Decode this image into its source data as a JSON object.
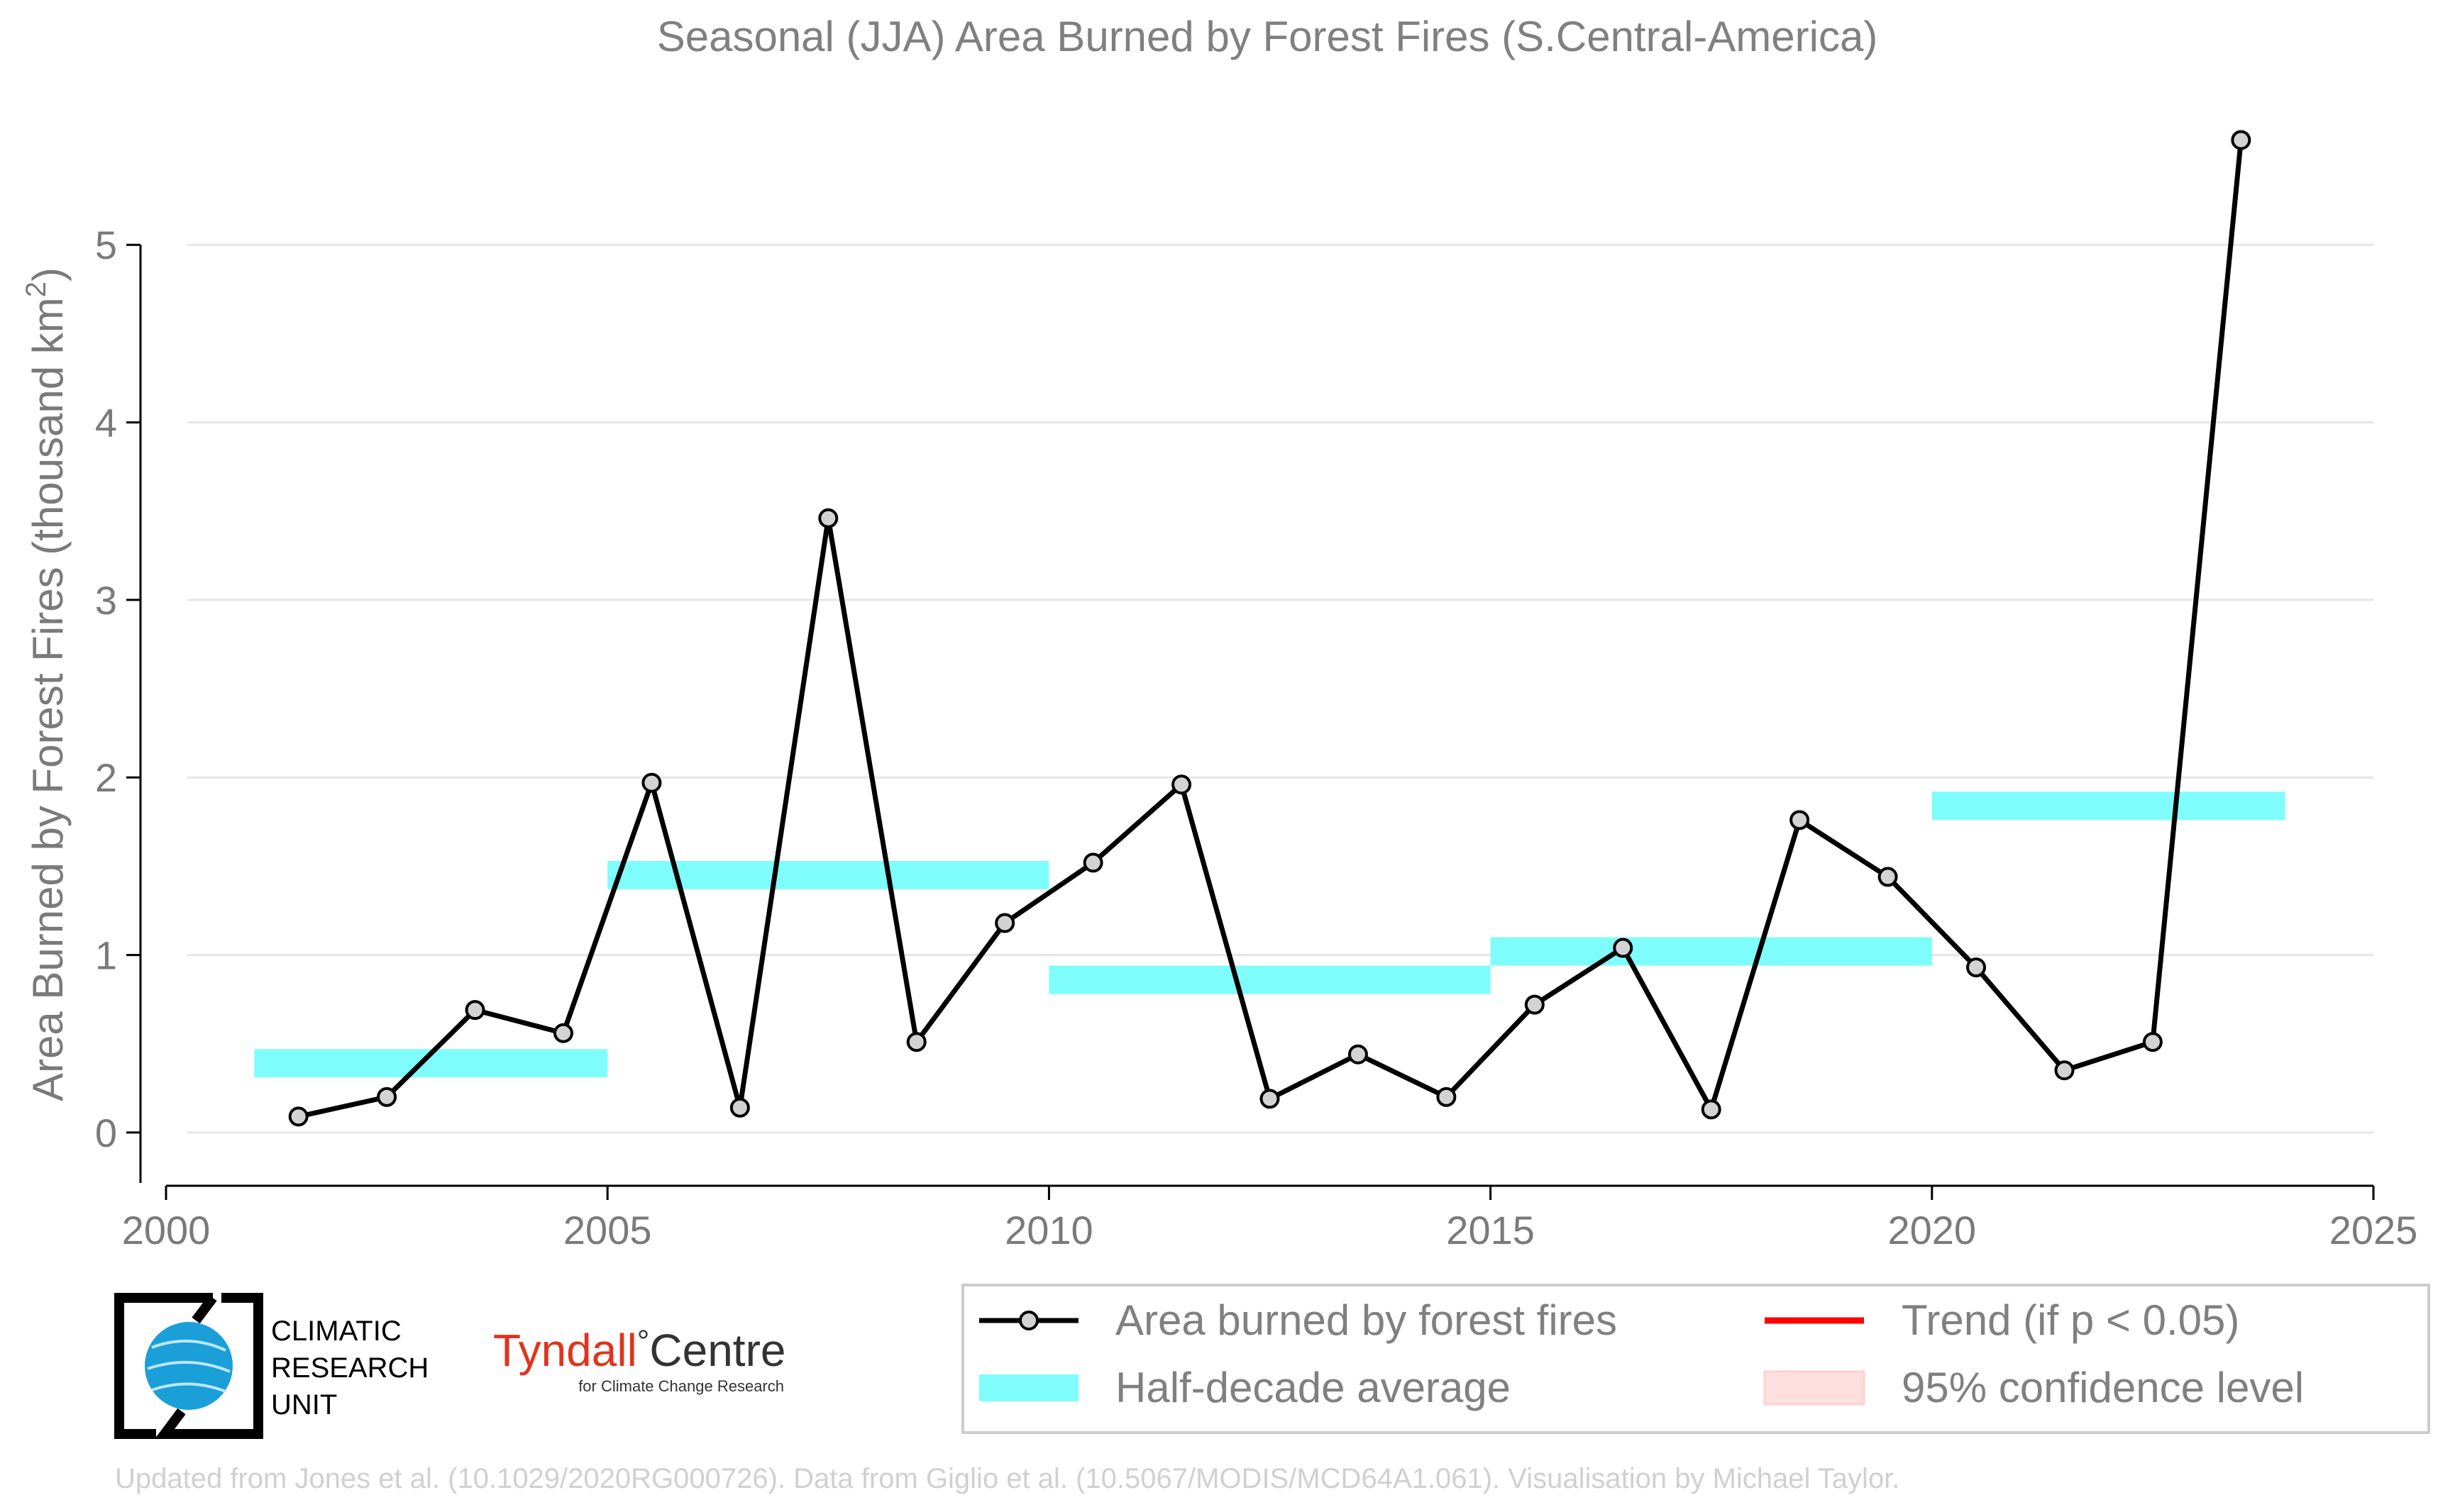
{
  "chart_data": {
    "type": "line",
    "title": "Seasonal (JJA) Area Burned by Forest Fires (S.Central-America)",
    "ylabel_main": "Area Burned by Forest Fires (thousand km",
    "ylabel_sup": "2",
    "ylabel_close": ")",
    "xlim": [
      2000,
      2025
    ],
    "ylim": [
      -0.3,
      5.7
    ],
    "x_ticks": [
      2000,
      2005,
      2010,
      2015,
      2020,
      2025
    ],
    "y_ticks": [
      0,
      1,
      2,
      3,
      4,
      5
    ],
    "grid": "horizontal",
    "legend_position": "bottom-right",
    "series": [
      {
        "name": "Area burned by forest fires",
        "color": "#000000",
        "marker_fill": "#d3d3d3",
        "x": [
          2001.5,
          2002.5,
          2003.5,
          2004.5,
          2005.5,
          2006.5,
          2007.5,
          2008.5,
          2009.5,
          2010.5,
          2011.5,
          2012.5,
          2013.5,
          2014.5,
          2015.5,
          2016.5,
          2017.5,
          2018.5,
          2019.5,
          2020.5,
          2021.5,
          2022.5,
          2023.5
        ],
        "values": [
          0.09,
          0.2,
          0.69,
          0.56,
          1.97,
          0.14,
          3.46,
          0.51,
          1.18,
          1.52,
          1.96,
          0.19,
          0.44,
          0.2,
          0.72,
          1.04,
          0.13,
          1.76,
          1.44,
          0.93,
          0.35,
          0.51,
          5.59
        ]
      }
    ],
    "half_decade_average": {
      "name": "Half-decade average",
      "color": "#7ffdfd",
      "segments": [
        {
          "x_start": 2001,
          "x_end": 2005,
          "value": 0.39
        },
        {
          "x_start": 2005,
          "x_end": 2010,
          "value": 1.45
        },
        {
          "x_start": 2010,
          "x_end": 2015,
          "value": 0.86
        },
        {
          "x_start": 2015,
          "x_end": 2020,
          "value": 1.02
        },
        {
          "x_start": 2020,
          "x_end": 2024,
          "value": 1.84
        }
      ]
    },
    "legend": [
      {
        "label": "Area burned by forest fires",
        "kind": "line-marker",
        "color": "#000000"
      },
      {
        "label": "Trend (if p < 0.05)",
        "kind": "line",
        "color": "#ff0000"
      },
      {
        "label": "Half-decade average",
        "kind": "band",
        "color": "#7ffdfd"
      },
      {
        "label": "95% confidence level",
        "kind": "patch",
        "color": "#ffe0e0"
      }
    ]
  },
  "logos": {
    "cru_line1": "CLIMATIC",
    "cru_line2": "RESEARCH",
    "cru_line3": "UNIT",
    "tyndall_name": "Tyndall",
    "tyndall_degree": "°",
    "tyndall_centre": "Centre",
    "tyndall_sub": "for Climate Change Research"
  },
  "footer": "Updated from Jones et al. (10.1029/2020RG000726). Data from Giglio et al. (10.5067/MODIS/MCD64A1.061). Visualisation by Michael Taylor."
}
